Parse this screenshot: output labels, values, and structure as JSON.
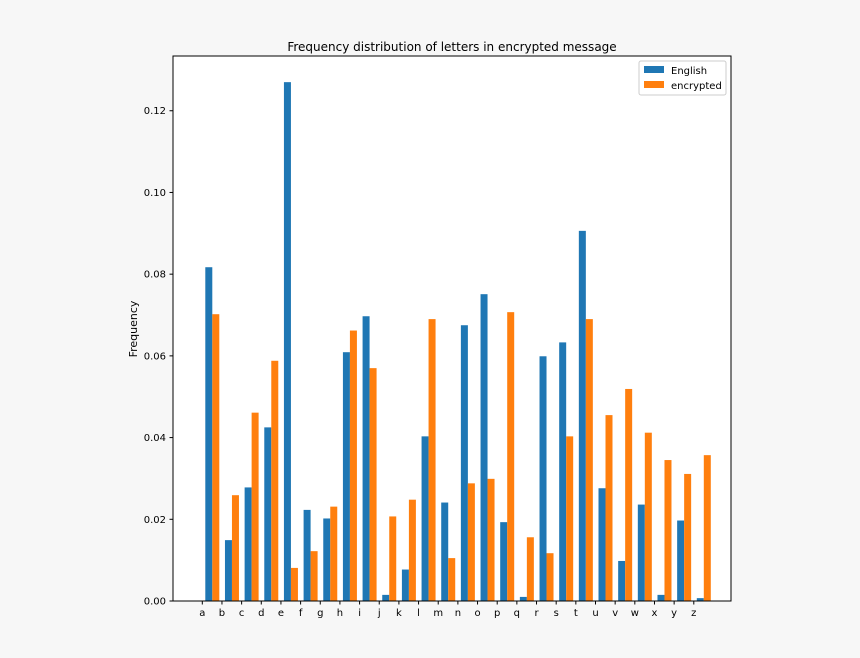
{
  "chart_data": {
    "type": "bar",
    "title": "Frequency distribution of letters in encrypted message",
    "xlabel": "",
    "ylabel": "Frequency",
    "categories": [
      "a",
      "b",
      "c",
      "d",
      "e",
      "f",
      "g",
      "h",
      "i",
      "j",
      "k",
      "l",
      "m",
      "n",
      "o",
      "p",
      "q",
      "r",
      "s",
      "t",
      "u",
      "v",
      "w",
      "x",
      "y",
      "z"
    ],
    "series": [
      {
        "name": "English",
        "color": "#1f77b4",
        "values": [
          0.0817,
          0.0149,
          0.0278,
          0.0425,
          0.127,
          0.0223,
          0.0202,
          0.0609,
          0.0697,
          0.0015,
          0.0077,
          0.0403,
          0.0241,
          0.0675,
          0.0751,
          0.0193,
          0.001,
          0.0599,
          0.0633,
          0.0906,
          0.0276,
          0.0098,
          0.0236,
          0.0015,
          0.0197,
          0.0007
        ]
      },
      {
        "name": "encrypted",
        "color": "#ff7f0e",
        "values": [
          0.0702,
          0.0259,
          0.0461,
          0.0588,
          0.0081,
          0.0122,
          0.0231,
          0.0662,
          0.057,
          0.0207,
          0.0248,
          0.069,
          0.0105,
          0.0288,
          0.0299,
          0.0707,
          0.0156,
          0.0117,
          0.0403,
          0.069,
          0.0455,
          0.0519,
          0.0412,
          0.0345,
          0.0311,
          0.0357
        ]
      }
    ],
    "ylim": [
      0,
      0.1334
    ],
    "yticks": [
      "0.00",
      "0.02",
      "0.04",
      "0.06",
      "0.08",
      "0.10",
      "0.12"
    ],
    "legend_position": "top-right",
    "grid": false
  }
}
